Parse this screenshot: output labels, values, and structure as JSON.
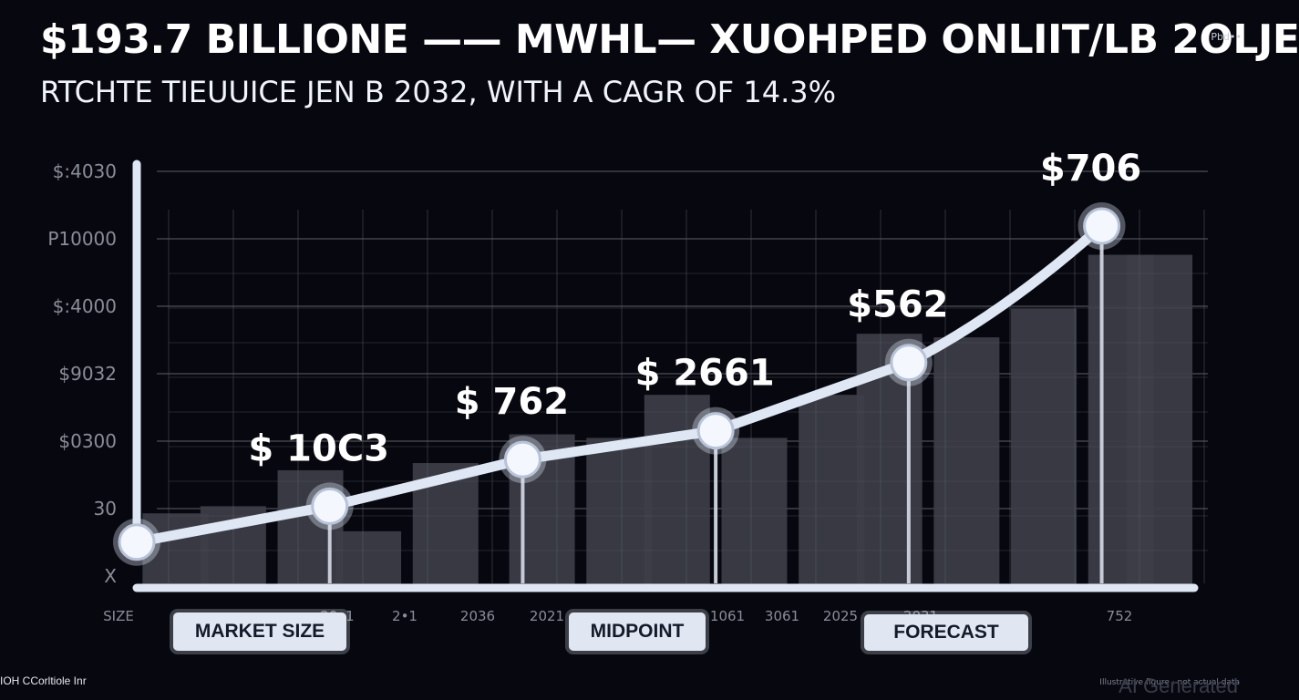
{
  "title": "$193.7 BILLIONE —— MWHL— XUOHPED ONLIIT/LB 2OLJE",
  "subtitle": "RTCHTE TIEUUICE JEN B 2032, WITH A CAGR OF 14.3%",
  "corner_tag": "Pbd••",
  "footer_left": "IOH CCorltiole Inr",
  "footer_right": "Illustrative figure · not actual data",
  "watermark": "AI Generated",
  "pills": {
    "market_size": "MARKET SIZE",
    "midpoint": "MIDPOINT",
    "forecast": "FORECAST"
  },
  "colors": {
    "background": "#07070f",
    "line": "#dfe7f5",
    "bar": "#3d3e48",
    "grid": "#6c6d78",
    "tick_text": "#8a8d98"
  },
  "chart_data": {
    "type": "line",
    "title": "$193.7 BILLIONE —— MWHL— XUOHPED ONLIIT/LB 2OLJE",
    "ylim": [
      0,
      100
    ],
    "y_tick_labels": [
      "$:4030",
      "P10000",
      "$:4000",
      "$9032",
      "$0300",
      "30",
      "X"
    ],
    "x_tick_labels": [
      "SIZE",
      "20•1",
      "2•1",
      "2036",
      "2021",
      "1061",
      "3061",
      "2025",
      "2031",
      "752"
    ],
    "series": [
      {
        "name": "Market size",
        "points": [
          {
            "x": 0,
            "y": 12,
            "label": ""
          },
          {
            "x": 1,
            "y": 22,
            "label": "$ 10C3"
          },
          {
            "x": 2,
            "y": 35,
            "label": "$ 762"
          },
          {
            "x": 3,
            "y": 43,
            "label": "$ 2661"
          },
          {
            "x": 4,
            "y": 62,
            "label": "$562"
          },
          {
            "x": 5,
            "y": 100,
            "label": "$706"
          }
        ]
      }
    ],
    "bars": [
      {
        "x": 0.2,
        "y": 20
      },
      {
        "x": 0.5,
        "y": 22
      },
      {
        "x": 0.9,
        "y": 32
      },
      {
        "x": 1.2,
        "y": 15
      },
      {
        "x": 1.6,
        "y": 34
      },
      {
        "x": 2.1,
        "y": 42
      },
      {
        "x": 2.5,
        "y": 41
      },
      {
        "x": 2.8,
        "y": 53
      },
      {
        "x": 3.2,
        "y": 41
      },
      {
        "x": 3.6,
        "y": 53
      },
      {
        "x": 3.9,
        "y": 70
      },
      {
        "x": 4.3,
        "y": 69
      },
      {
        "x": 4.7,
        "y": 77
      },
      {
        "x": 5.1,
        "y": 92
      },
      {
        "x": 5.3,
        "y": 92
      }
    ]
  }
}
